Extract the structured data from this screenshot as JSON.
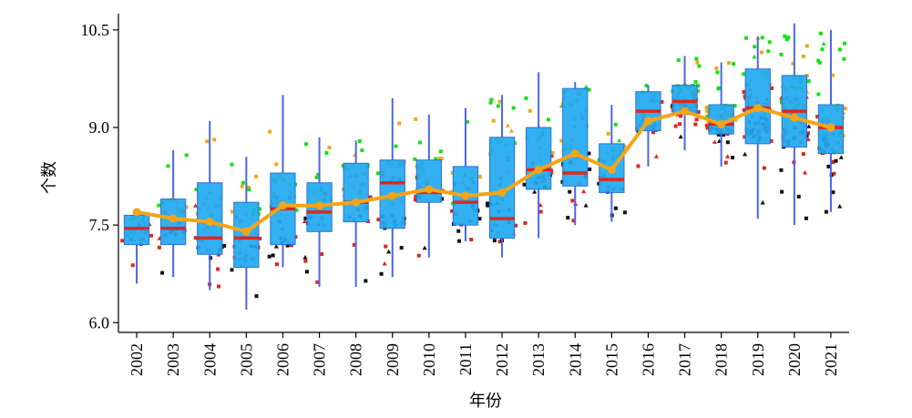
{
  "chart_data": {
    "type": "box",
    "title": "",
    "xlabel": "年份",
    "ylabel": "个数",
    "ylim": [
      5.85,
      10.75
    ],
    "yticks": [
      6.0,
      7.5,
      9.0,
      10.5
    ],
    "ytick_labels": [
      "6.0",
      "7.5",
      "9.0",
      "10.5"
    ],
    "categories": [
      "2002",
      "2003",
      "2004",
      "2005",
      "2006",
      "2007",
      "2008",
      "2009",
      "2010",
      "2011",
      "2012",
      "2013",
      "2014",
      "2015",
      "2016",
      "2017",
      "2018",
      "2019",
      "2020",
      "2021"
    ],
    "boxes": [
      {
        "year": "2002",
        "q1": 7.2,
        "median": 7.45,
        "q3": 7.65,
        "whisker_low": 6.6,
        "whisker_high": 7.7,
        "mean": 7.7
      },
      {
        "year": "2003",
        "q1": 7.2,
        "median": 7.45,
        "q3": 7.9,
        "whisker_low": 6.7,
        "whisker_high": 8.65,
        "mean": 7.6
      },
      {
        "year": "2004",
        "q1": 7.05,
        "median": 7.3,
        "q3": 8.15,
        "whisker_low": 6.5,
        "whisker_high": 9.1,
        "mean": 7.55
      },
      {
        "year": "2005",
        "q1": 6.85,
        "median": 7.3,
        "q3": 7.85,
        "whisker_low": 6.2,
        "whisker_high": 8.55,
        "mean": 7.4
      },
      {
        "year": "2006",
        "q1": 7.2,
        "median": 7.75,
        "q3": 8.3,
        "whisker_low": 6.85,
        "whisker_high": 9.5,
        "mean": 7.8
      },
      {
        "year": "2007",
        "q1": 7.4,
        "median": 7.7,
        "q3": 8.15,
        "whisker_low": 6.55,
        "whisker_high": 8.85,
        "mean": 7.8
      },
      {
        "year": "2008",
        "q1": 7.55,
        "median": 7.85,
        "q3": 8.45,
        "whisker_low": 6.55,
        "whisker_high": 8.8,
        "mean": 7.85
      },
      {
        "year": "2009",
        "q1": 7.45,
        "median": 8.15,
        "q3": 8.5,
        "whisker_low": 6.7,
        "whisker_high": 9.45,
        "mean": 7.95
      },
      {
        "year": "2010",
        "q1": 7.85,
        "median": 8.0,
        "q3": 8.5,
        "whisker_low": 7.0,
        "whisker_high": 9.2,
        "mean": 8.05
      },
      {
        "year": "2011",
        "q1": 7.5,
        "median": 7.85,
        "q3": 8.4,
        "whisker_low": 7.25,
        "whisker_high": 9.3,
        "mean": 7.95
      },
      {
        "year": "2012",
        "q1": 7.3,
        "median": 7.6,
        "q3": 8.85,
        "whisker_low": 7.0,
        "whisker_high": 9.5,
        "mean": 8.0
      },
      {
        "year": "2013",
        "q1": 8.05,
        "median": 8.35,
        "q3": 9.0,
        "whisker_low": 7.3,
        "whisker_high": 9.85,
        "mean": 8.35
      },
      {
        "year": "2014",
        "q1": 8.1,
        "median": 8.3,
        "q3": 9.6,
        "whisker_low": 7.5,
        "whisker_high": 9.7,
        "mean": 8.6
      },
      {
        "year": "2015",
        "q1": 8.0,
        "median": 8.2,
        "q3": 8.75,
        "whisker_low": 7.55,
        "whisker_high": 9.35,
        "mean": 8.35
      },
      {
        "year": "2016",
        "q1": 8.95,
        "median": 9.25,
        "q3": 9.55,
        "whisker_low": 8.4,
        "whisker_high": 9.65,
        "mean": 9.1
      },
      {
        "year": "2017",
        "q1": 9.2,
        "median": 9.4,
        "q3": 9.65,
        "whisker_low": 8.65,
        "whisker_high": 10.1,
        "mean": 9.25
      },
      {
        "year": "2018",
        "q1": 8.9,
        "median": 9.05,
        "q3": 9.35,
        "whisker_low": 8.4,
        "whisker_high": 10.0,
        "mean": 9.05
      },
      {
        "year": "2019",
        "q1": 8.75,
        "median": 9.3,
        "q3": 9.9,
        "whisker_low": 7.6,
        "whisker_high": 10.4,
        "mean": 9.3
      },
      {
        "year": "2020",
        "q1": 8.7,
        "median": 9.25,
        "q3": 9.8,
        "whisker_low": 7.5,
        "whisker_high": 10.6,
        "mean": 9.15
      },
      {
        "year": "2021",
        "q1": 8.6,
        "median": 9.0,
        "q3": 9.35,
        "whisker_low": 7.7,
        "whisker_high": 10.5,
        "mean": 9.0
      }
    ],
    "mean_line": {
      "x": [
        "2002",
        "2003",
        "2004",
        "2005",
        "2006",
        "2007",
        "2008",
        "2009",
        "2010",
        "2011",
        "2012",
        "2013",
        "2014",
        "2015",
        "2016",
        "2017",
        "2018",
        "2019",
        "2020",
        "2021"
      ],
      "y": [
        7.7,
        7.6,
        7.55,
        7.4,
        7.8,
        7.8,
        7.85,
        7.95,
        8.05,
        7.95,
        8.0,
        8.35,
        8.6,
        8.35,
        9.1,
        9.25,
        9.05,
        9.3,
        9.15,
        9.0
      ]
    },
    "grid": false,
    "legend": "none",
    "colors": {
      "box_fill": "#21a9f0",
      "box_edge": "#2f6fd6",
      "whisker": "#4a66e8",
      "median": "#e0261b",
      "mean_line": "#f5a418",
      "points": [
        "#18e016",
        "#f5a418",
        "#e0261b",
        "#111111"
      ]
    }
  }
}
